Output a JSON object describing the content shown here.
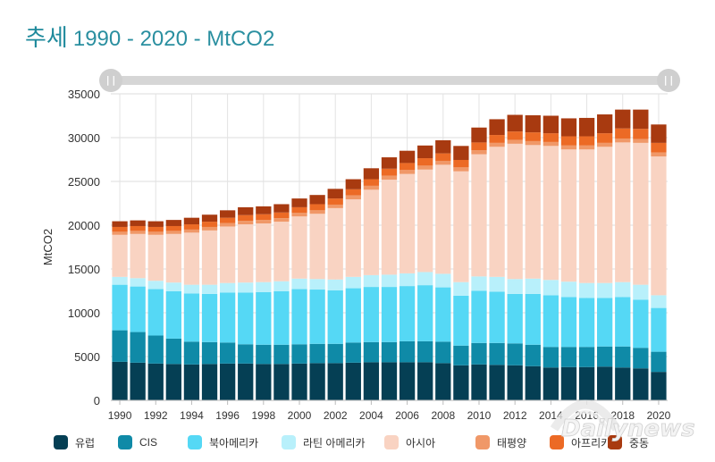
{
  "header": {
    "title_main": "추세",
    "title_sub": "1990 - 2020 - MtCO2"
  },
  "slider": {
    "left_handle": "||",
    "right_handle": "||"
  },
  "watermark": {
    "text": "Dailynews"
  },
  "chart_data": {
    "type": "bar",
    "stacked": true,
    "title": "",
    "xlabel": "",
    "ylabel": "MtCO2",
    "ylim": [
      0,
      35000
    ],
    "yticks": [
      0,
      5000,
      10000,
      15000,
      20000,
      25000,
      30000,
      35000
    ],
    "xticks": [
      "1990",
      "1992",
      "1994",
      "1996",
      "1998",
      "2000",
      "2002",
      "2004",
      "2006",
      "2008",
      "2010",
      "2012",
      "2014",
      "2016",
      "2018",
      "2020"
    ],
    "grid": true,
    "legend_position": "bottom",
    "categories": [
      "1990",
      "1991",
      "1992",
      "1993",
      "1994",
      "1995",
      "1996",
      "1997",
      "1998",
      "1999",
      "2000",
      "2001",
      "2002",
      "2003",
      "2004",
      "2005",
      "2006",
      "2007",
      "2008",
      "2009",
      "2010",
      "2011",
      "2012",
      "2013",
      "2014",
      "2015",
      "2016",
      "2017",
      "2018",
      "2019",
      "2020"
    ],
    "series": [
      {
        "name": "유럽",
        "color": "#053f54",
        "values": [
          4400,
          4300,
          4200,
          4150,
          4100,
          4150,
          4200,
          4200,
          4150,
          4150,
          4200,
          4250,
          4250,
          4300,
          4350,
          4350,
          4350,
          4350,
          4250,
          4000,
          4100,
          4050,
          4000,
          3900,
          3750,
          3800,
          3800,
          3850,
          3750,
          3650,
          3250
        ]
      },
      {
        "name": "CIS",
        "color": "#0f8aa7",
        "values": [
          3600,
          3500,
          3200,
          2900,
          2600,
          2500,
          2400,
          2200,
          2200,
          2200,
          2200,
          2200,
          2200,
          2300,
          2300,
          2300,
          2400,
          2400,
          2450,
          2250,
          2450,
          2500,
          2500,
          2450,
          2350,
          2300,
          2300,
          2300,
          2400,
          2350,
          2300
        ]
      },
      {
        "name": "북아메리카",
        "color": "#55d8f5",
        "values": [
          5200,
          5200,
          5300,
          5400,
          5500,
          5500,
          5700,
          5900,
          6000,
          6100,
          6300,
          6200,
          6100,
          6200,
          6300,
          6300,
          6300,
          6400,
          6200,
          5700,
          5950,
          5850,
          5650,
          5800,
          5900,
          5700,
          5600,
          5550,
          5650,
          5500,
          5000
        ]
      },
      {
        "name": "라틴 아메리카",
        "color": "#b8f0fb",
        "values": [
          900,
          950,
          950,
          1000,
          1000,
          1050,
          1100,
          1150,
          1150,
          1150,
          1200,
          1200,
          1250,
          1300,
          1350,
          1400,
          1450,
          1500,
          1550,
          1550,
          1650,
          1700,
          1700,
          1750,
          1750,
          1750,
          1700,
          1700,
          1700,
          1700,
          1450
        ]
      },
      {
        "name": "아시아",
        "color": "#f9d3c2",
        "values": [
          4800,
          5050,
          5250,
          5550,
          5950,
          6200,
          6450,
          6650,
          6700,
          6800,
          7100,
          7450,
          8150,
          8850,
          9750,
          10850,
          11350,
          11700,
          12450,
          12650,
          13950,
          14850,
          15450,
          15250,
          15300,
          15100,
          15250,
          15550,
          15950,
          16200,
          15850
        ]
      },
      {
        "name": "태평양",
        "color": "#f09868",
        "values": [
          350,
          350,
          350,
          350,
          350,
          400,
          400,
          400,
          400,
          400,
          400,
          400,
          400,
          450,
          450,
          450,
          450,
          450,
          450,
          450,
          450,
          450,
          450,
          450,
          450,
          450,
          450,
          450,
          450,
          450,
          450
        ]
      },
      {
        "name": "아프리카",
        "color": "#ec6a25",
        "values": [
          550,
          550,
          550,
          550,
          600,
          600,
          600,
          650,
          650,
          650,
          650,
          700,
          700,
          700,
          750,
          800,
          800,
          850,
          850,
          850,
          900,
          900,
          950,
          1000,
          1000,
          1050,
          1050,
          1100,
          1150,
          1150,
          1100
        ]
      },
      {
        "name": "중동",
        "color": "#a83a10",
        "values": [
          650,
          650,
          650,
          700,
          750,
          800,
          850,
          900,
          900,
          950,
          1000,
          1050,
          1100,
          1150,
          1250,
          1300,
          1400,
          1450,
          1500,
          1600,
          1700,
          1800,
          1900,
          1950,
          2000,
          2050,
          2100,
          2150,
          2150,
          2200,
          2100
        ]
      }
    ]
  }
}
